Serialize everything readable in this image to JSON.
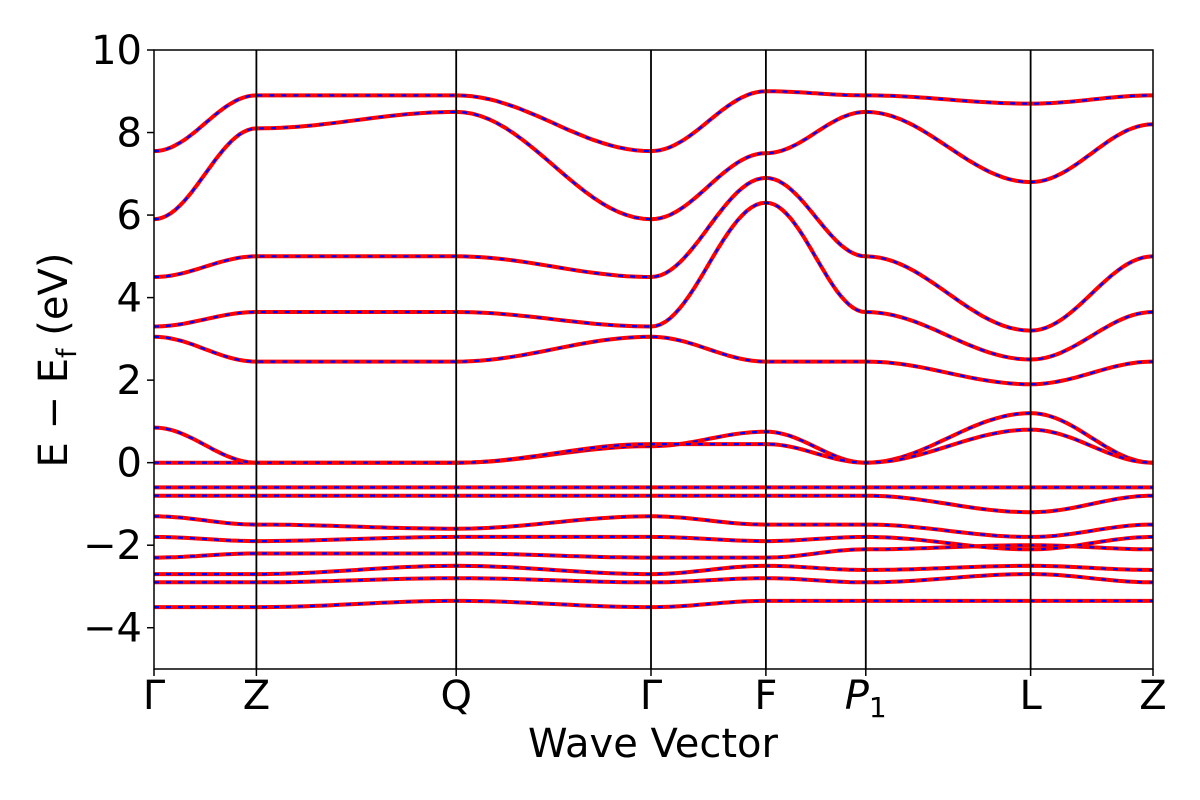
{
  "chart_data": {
    "type": "line",
    "title": "",
    "xlabel": "Wave Vector",
    "ylabel_main": "E − E",
    "ylabel_sub": "f",
    "ylabel_unit": " (eV)",
    "ylim": [
      -5,
      10
    ],
    "yticks": [
      -4,
      -2,
      0,
      2,
      4,
      6,
      8,
      10
    ],
    "ytick_labels": [
      "−4",
      "−2",
      "0",
      "2",
      "4",
      "6",
      "8",
      "10"
    ],
    "grid": false,
    "legend": "none",
    "kpath_positions": [
      0,
      0.1025,
      0.3025,
      0.4975,
      0.6125,
      0.7125,
      0.8775,
      1.0
    ],
    "kpath_labels": [
      "Γ",
      "Z",
      "Q",
      "Γ",
      "F",
      "P1",
      "L",
      "Z"
    ],
    "kpath_label_main": [
      "Γ",
      "Z",
      "Q",
      "Γ",
      "F",
      "P",
      "L",
      "Z"
    ],
    "kpath_label_sub": [
      "",
      "",
      "",
      "",
      "",
      "1",
      "",
      ""
    ],
    "series_styles": [
      {
        "color": "#ff0000",
        "dash": "solid"
      },
      {
        "color": "#0000ff",
        "dash": "dashed"
      }
    ],
    "bands": [
      [
        [
          0,
          -3.5
        ],
        [
          0.1025,
          -3.5
        ],
        [
          0.3025,
          -3.35
        ],
        [
          0.4975,
          -3.5
        ],
        [
          0.6125,
          -3.35
        ],
        [
          0.7125,
          -3.35
        ],
        [
          0.8775,
          -3.35
        ],
        [
          1.0,
          -3.35
        ]
      ],
      [
        [
          0,
          -2.9
        ],
        [
          0.1025,
          -2.9
        ],
        [
          0.3025,
          -2.8
        ],
        [
          0.4975,
          -2.9
        ],
        [
          0.6125,
          -2.8
        ],
        [
          0.7125,
          -2.9
        ],
        [
          0.8775,
          -2.7
        ],
        [
          1.0,
          -2.9
        ]
      ],
      [
        [
          0,
          -2.7
        ],
        [
          0.1025,
          -2.7
        ],
        [
          0.3025,
          -2.5
        ],
        [
          0.4975,
          -2.7
        ],
        [
          0.6125,
          -2.5
        ],
        [
          0.7125,
          -2.6
        ],
        [
          0.8775,
          -2.5
        ],
        [
          1.0,
          -2.6
        ]
      ],
      [
        [
          0,
          -2.3
        ],
        [
          0.1025,
          -2.2
        ],
        [
          0.3025,
          -2.2
        ],
        [
          0.4975,
          -2.3
        ],
        [
          0.6125,
          -2.3
        ],
        [
          0.7125,
          -2.1
        ],
        [
          0.8775,
          -2.0
        ],
        [
          1.0,
          -2.1
        ]
      ],
      [
        [
          0,
          -1.8
        ],
        [
          0.1025,
          -1.9
        ],
        [
          0.3025,
          -1.8
        ],
        [
          0.4975,
          -1.8
        ],
        [
          0.6125,
          -1.9
        ],
        [
          0.7125,
          -1.8
        ],
        [
          0.8775,
          -2.1
        ],
        [
          1.0,
          -1.8
        ]
      ],
      [
        [
          0,
          -1.3
        ],
        [
          0.1025,
          -1.5
        ],
        [
          0.3025,
          -1.6
        ],
        [
          0.4975,
          -1.3
        ],
        [
          0.6125,
          -1.5
        ],
        [
          0.7125,
          -1.5
        ],
        [
          0.8775,
          -1.8
        ],
        [
          1.0,
          -1.5
        ]
      ],
      [
        [
          0,
          -0.8
        ],
        [
          0.1025,
          -0.8
        ],
        [
          0.3025,
          -0.8
        ],
        [
          0.4975,
          -0.8
        ],
        [
          0.6125,
          -0.8
        ],
        [
          0.7125,
          -0.8
        ],
        [
          0.8775,
          -1.2
        ],
        [
          1.0,
          -0.8
        ]
      ],
      [
        [
          0,
          -0.6
        ],
        [
          0.1025,
          -0.6
        ],
        [
          0.3025,
          -0.6
        ],
        [
          0.4975,
          -0.6
        ],
        [
          0.6125,
          -0.6
        ],
        [
          0.7125,
          -0.6
        ],
        [
          0.8775,
          -0.6
        ],
        [
          1.0,
          -0.6
        ]
      ],
      [
        [
          0,
          0.0
        ],
        [
          0.1025,
          0.0
        ],
        [
          0.3025,
          0.0
        ],
        [
          0.4975,
          0.4
        ],
        [
          0.6125,
          0.75
        ],
        [
          0.7125,
          0.0
        ],
        [
          0.8775,
          1.2
        ],
        [
          1.0,
          0.0
        ]
      ],
      [
        [
          0,
          0.85
        ],
        [
          0.1025,
          0.0
        ],
        [
          0.3025,
          0.0
        ],
        [
          0.4975,
          0.45
        ],
        [
          0.6125,
          0.45
        ],
        [
          0.7125,
          0.0
        ],
        [
          0.8775,
          0.8
        ],
        [
          1.0,
          0.0
        ]
      ],
      [
        [
          0,
          3.05
        ],
        [
          0.1025,
          2.45
        ],
        [
          0.3025,
          2.45
        ],
        [
          0.4975,
          3.05
        ],
        [
          0.6125,
          2.45
        ],
        [
          0.7125,
          2.45
        ],
        [
          0.8775,
          1.9
        ],
        [
          1.0,
          2.45
        ]
      ],
      [
        [
          0,
          3.3
        ],
        [
          0.1025,
          3.65
        ],
        [
          0.3025,
          3.65
        ],
        [
          0.4975,
          3.3
        ],
        [
          0.6125,
          6.3
        ],
        [
          0.7125,
          3.65
        ],
        [
          0.8775,
          2.5
        ],
        [
          1.0,
          3.65
        ]
      ],
      [
        [
          0,
          4.5
        ],
        [
          0.1025,
          5.0
        ],
        [
          0.3025,
          5.0
        ],
        [
          0.4975,
          4.5
        ],
        [
          0.6125,
          6.9
        ],
        [
          0.7125,
          5.0
        ],
        [
          0.8775,
          3.2
        ],
        [
          1.0,
          5.0
        ]
      ],
      [
        [
          0,
          5.9
        ],
        [
          0.1025,
          8.1
        ],
        [
          0.3025,
          8.5
        ],
        [
          0.4975,
          5.9
        ],
        [
          0.6125,
          7.5
        ],
        [
          0.7125,
          8.5
        ],
        [
          0.8775,
          6.8
        ],
        [
          1.0,
          8.2
        ]
      ],
      [
        [
          0,
          7.55
        ],
        [
          0.1025,
          8.9
        ],
        [
          0.3025,
          8.9
        ],
        [
          0.4975,
          7.55
        ],
        [
          0.6125,
          9.0
        ],
        [
          0.7125,
          8.9
        ],
        [
          0.8775,
          8.7
        ],
        [
          1.0,
          8.9
        ]
      ]
    ]
  }
}
